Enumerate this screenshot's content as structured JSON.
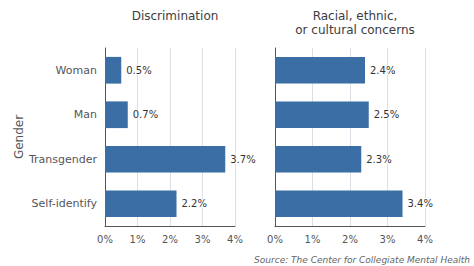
{
  "chart_data": [
    {
      "type": "bar",
      "orientation": "horizontal",
      "title": "Discrimination",
      "y_label": "Gender",
      "categories": [
        "Self-identify",
        "Transgender",
        "Man",
        "Woman"
      ],
      "values": [
        2.2,
        3.7,
        0.7,
        0.5
      ],
      "value_labels": [
        "2.2%",
        "3.7%",
        "0.7%",
        "0.5%"
      ],
      "data_labels": true,
      "color": "#3b6ea5",
      "xlim": [
        0,
        4
      ],
      "xticks": [
        {
          "value": 0,
          "label": "0%"
        },
        {
          "value": 1,
          "label": "1%"
        },
        {
          "value": 2,
          "label": "2%"
        },
        {
          "value": 3,
          "label": "3%"
        },
        {
          "value": 4,
          "label": "4%"
        }
      ],
      "grid": true
    },
    {
      "type": "bar",
      "orientation": "horizontal",
      "title": "Racial, ethnic,\nor cultural concerns",
      "categories": [
        "Self-identify",
        "Transgender",
        "Man",
        "Woman"
      ],
      "values": [
        3.4,
        2.3,
        2.5,
        2.4
      ],
      "value_labels": [
        "3.4%",
        "2.3%",
        "2.5%",
        "2.4%"
      ],
      "data_labels": true,
      "color": "#3b6ea5",
      "xlim": [
        0,
        4
      ],
      "xticks": [
        {
          "value": 0,
          "label": "0%"
        },
        {
          "value": 1,
          "label": "1%"
        },
        {
          "value": 2,
          "label": "2%"
        },
        {
          "value": 3,
          "label": "3%"
        },
        {
          "value": 4,
          "label": "4%"
        }
      ],
      "grid": true,
      "tick_labels": "x",
      "annotations": [
        "Source: The Center for Collegiate Mental Health"
      ]
    }
  ]
}
